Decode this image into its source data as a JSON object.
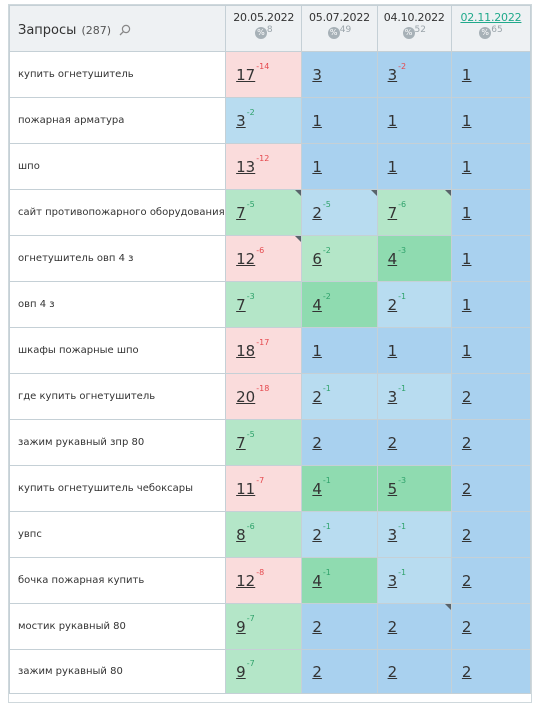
{
  "header": {
    "title": "Запросы",
    "count": "(287)",
    "dates": [
      {
        "label": "20.05.2022",
        "pct": "8",
        "link": false
      },
      {
        "label": "05.07.2022",
        "pct": "49",
        "link": false
      },
      {
        "label": "04.10.2022",
        "pct": "52",
        "link": false
      },
      {
        "label": "02.11.2022",
        "pct": "65",
        "link": true
      }
    ],
    "pct_badge": "%"
  },
  "colors": {
    "red": "#fadcdc",
    "green": "#b4e6c8",
    "green_dark": "#8fdbb0",
    "blue_light": "#b8dcf0",
    "blue": "#a9d1ef"
  },
  "rows": [
    {
      "query": "купить огнетушитель",
      "cells": [
        {
          "pos": "17",
          "ch": "-14",
          "bg": "red",
          "flag": false
        },
        {
          "pos": "3",
          "ch": "",
          "bg": "blue",
          "flag": false
        },
        {
          "pos": "3",
          "ch": "-2",
          "bg": "blue",
          "flag": false
        },
        {
          "pos": "1",
          "ch": "",
          "bg": "blue",
          "flag": false
        }
      ]
    },
    {
      "query": "пожарная арматура",
      "cells": [
        {
          "pos": "3",
          "ch": "-2",
          "bg": "blue_light",
          "flag": false
        },
        {
          "pos": "1",
          "ch": "",
          "bg": "blue",
          "flag": false
        },
        {
          "pos": "1",
          "ch": "",
          "bg": "blue",
          "flag": false
        },
        {
          "pos": "1",
          "ch": "",
          "bg": "blue",
          "flag": false
        }
      ]
    },
    {
      "query": "шпо",
      "cells": [
        {
          "pos": "13",
          "ch": "-12",
          "bg": "red",
          "flag": false
        },
        {
          "pos": "1",
          "ch": "",
          "bg": "blue",
          "flag": false
        },
        {
          "pos": "1",
          "ch": "",
          "bg": "blue",
          "flag": false
        },
        {
          "pos": "1",
          "ch": "",
          "bg": "blue",
          "flag": false
        }
      ]
    },
    {
      "query": "сайт противопожарного оборудования",
      "cells": [
        {
          "pos": "7",
          "ch": "-5",
          "bg": "green",
          "flag": true
        },
        {
          "pos": "2",
          "ch": "-5",
          "bg": "blue_light",
          "flag": true
        },
        {
          "pos": "7",
          "ch": "-6",
          "bg": "green",
          "flag": true
        },
        {
          "pos": "1",
          "ch": "",
          "bg": "blue",
          "flag": false
        }
      ]
    },
    {
      "query": "огнетушитель овп 4 з",
      "cells": [
        {
          "pos": "12",
          "ch": "-6",
          "bg": "red",
          "flag": true
        },
        {
          "pos": "6",
          "ch": "-2",
          "bg": "green",
          "flag": false
        },
        {
          "pos": "4",
          "ch": "-3",
          "bg": "green_dark",
          "flag": false
        },
        {
          "pos": "1",
          "ch": "",
          "bg": "blue",
          "flag": false
        }
      ]
    },
    {
      "query": "овп 4 з",
      "cells": [
        {
          "pos": "7",
          "ch": "-3",
          "bg": "green",
          "flag": false
        },
        {
          "pos": "4",
          "ch": "-2",
          "bg": "green_dark",
          "flag": false
        },
        {
          "pos": "2",
          "ch": "-1",
          "bg": "blue_light",
          "flag": false
        },
        {
          "pos": "1",
          "ch": "",
          "bg": "blue",
          "flag": false
        }
      ]
    },
    {
      "query": "шкафы пожарные шпо",
      "cells": [
        {
          "pos": "18",
          "ch": "-17",
          "bg": "red",
          "flag": false
        },
        {
          "pos": "1",
          "ch": "",
          "bg": "blue",
          "flag": false
        },
        {
          "pos": "1",
          "ch": "",
          "bg": "blue",
          "flag": false
        },
        {
          "pos": "1",
          "ch": "",
          "bg": "blue",
          "flag": false
        }
      ]
    },
    {
      "query": "где купить огнетушитель",
      "cells": [
        {
          "pos": "20",
          "ch": "-18",
          "bg": "red",
          "flag": false
        },
        {
          "pos": "2",
          "ch": "-1",
          "bg": "blue_light",
          "flag": false
        },
        {
          "pos": "3",
          "ch": "-1",
          "bg": "blue_light",
          "flag": false
        },
        {
          "pos": "2",
          "ch": "",
          "bg": "blue",
          "flag": false
        }
      ]
    },
    {
      "query": "зажим рукавный зпр 80",
      "cells": [
        {
          "pos": "7",
          "ch": "-5",
          "bg": "green",
          "flag": false
        },
        {
          "pos": "2",
          "ch": "",
          "bg": "blue",
          "flag": false
        },
        {
          "pos": "2",
          "ch": "",
          "bg": "blue",
          "flag": false
        },
        {
          "pos": "2",
          "ch": "",
          "bg": "blue",
          "flag": false
        }
      ]
    },
    {
      "query": "купить огнетушитель чебоксары",
      "cells": [
        {
          "pos": "11",
          "ch": "-7",
          "bg": "red",
          "flag": false
        },
        {
          "pos": "4",
          "ch": "-1",
          "bg": "green_dark",
          "flag": false
        },
        {
          "pos": "5",
          "ch": "-3",
          "bg": "green_dark",
          "flag": false
        },
        {
          "pos": "2",
          "ch": "",
          "bg": "blue",
          "flag": false
        }
      ]
    },
    {
      "query": "увпс",
      "cells": [
        {
          "pos": "8",
          "ch": "-6",
          "bg": "green",
          "flag": false
        },
        {
          "pos": "2",
          "ch": "-1",
          "bg": "blue_light",
          "flag": false
        },
        {
          "pos": "3",
          "ch": "-1",
          "bg": "blue_light",
          "flag": false
        },
        {
          "pos": "2",
          "ch": "",
          "bg": "blue",
          "flag": false
        }
      ]
    },
    {
      "query": "бочка пожарная купить",
      "cells": [
        {
          "pos": "12",
          "ch": "-8",
          "bg": "red",
          "flag": false
        },
        {
          "pos": "4",
          "ch": "-1",
          "bg": "green_dark",
          "flag": false
        },
        {
          "pos": "3",
          "ch": "-1",
          "bg": "blue_light",
          "flag": false
        },
        {
          "pos": "2",
          "ch": "",
          "bg": "blue",
          "flag": false
        }
      ]
    },
    {
      "query": "мостик рукавный 80",
      "cells": [
        {
          "pos": "9",
          "ch": "-7",
          "bg": "green",
          "flag": false
        },
        {
          "pos": "2",
          "ch": "",
          "bg": "blue",
          "flag": false
        },
        {
          "pos": "2",
          "ch": "",
          "bg": "blue",
          "flag": true
        },
        {
          "pos": "2",
          "ch": "",
          "bg": "blue",
          "flag": false
        }
      ]
    },
    {
      "query": "зажим рукавный 80",
      "cells": [
        {
          "pos": "9",
          "ch": "-7",
          "bg": "green",
          "flag": false
        },
        {
          "pos": "2",
          "ch": "",
          "bg": "blue",
          "flag": false
        },
        {
          "pos": "2",
          "ch": "",
          "bg": "blue",
          "flag": false
        },
        {
          "pos": "2",
          "ch": "",
          "bg": "blue",
          "flag": false
        }
      ]
    }
  ]
}
